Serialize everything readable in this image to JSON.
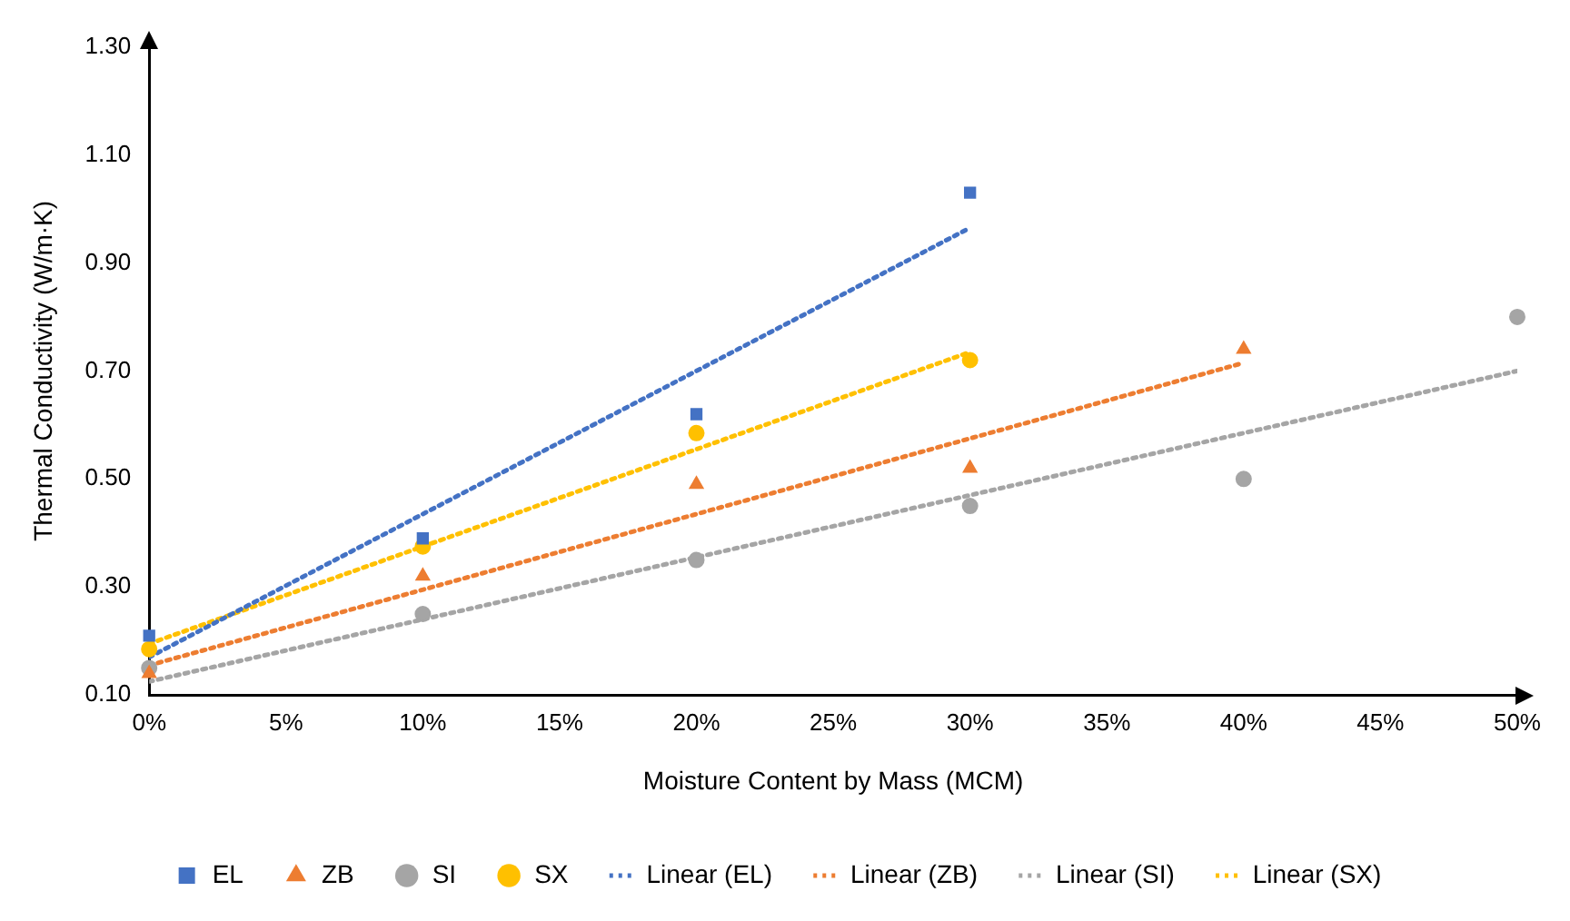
{
  "chart_data": {
    "type": "scatter",
    "xlabel": "Moisture Content by Mass (MCM)",
    "ylabel": "Thermal Conductivity (W/m·K)",
    "xlim": [
      0,
      50
    ],
    "xticks": [
      {
        "value": 0,
        "label": "0%"
      },
      {
        "value": 5,
        "label": "5%"
      },
      {
        "value": 10,
        "label": "10%"
      },
      {
        "value": 15,
        "label": "15%"
      },
      {
        "value": 20,
        "label": "20%"
      },
      {
        "value": 25,
        "label": "25%"
      },
      {
        "value": 30,
        "label": "30%"
      },
      {
        "value": 35,
        "label": "35%"
      },
      {
        "value": 40,
        "label": "40%"
      },
      {
        "value": 45,
        "label": "45%"
      },
      {
        "value": 50,
        "label": "50%"
      }
    ],
    "ylim": [
      0.1,
      1.3
    ],
    "yticks": [
      {
        "value": 0.1,
        "label": "0.10"
      },
      {
        "value": 0.3,
        "label": "0.30"
      },
      {
        "value": 0.5,
        "label": "0.50"
      },
      {
        "value": 0.7,
        "label": "0.70"
      },
      {
        "value": 0.9,
        "label": "0.90"
      },
      {
        "value": 1.1,
        "label": "1.10"
      },
      {
        "value": 1.3,
        "label": "1.30"
      }
    ],
    "grid": false,
    "legend": "bottom",
    "series": [
      {
        "name": "EL",
        "type": "scatter",
        "marker": "square",
        "color": "#4472c4",
        "x": [
          0,
          10,
          20,
          30
        ],
        "values": [
          0.21,
          0.39,
          0.62,
          1.03
        ]
      },
      {
        "name": "ZB",
        "type": "scatter",
        "marker": "triangle",
        "color": "#ed7d31",
        "x": [
          0,
          10,
          20,
          30,
          40
        ],
        "values": [
          0.14,
          0.32,
          0.49,
          0.52,
          0.74
        ]
      },
      {
        "name": "SI",
        "type": "scatter",
        "marker": "circle",
        "color": "#a5a5a5",
        "x": [
          0,
          10,
          20,
          30,
          40,
          50
        ],
        "values": [
          0.15,
          0.25,
          0.35,
          0.45,
          0.5,
          0.8
        ]
      },
      {
        "name": "SX",
        "type": "scatter",
        "marker": "circle",
        "color": "#ffc000",
        "x": [
          0,
          10,
          20,
          30
        ],
        "values": [
          0.185,
          0.375,
          0.585,
          0.72
        ]
      },
      {
        "name": "Linear (EL)",
        "type": "line",
        "marker": "none",
        "line_style": "dotted",
        "color": "#4472c4",
        "x": [
          0,
          30
        ],
        "values": [
          0.17,
          0.965
        ]
      },
      {
        "name": "Linear (ZB)",
        "type": "line",
        "marker": "none",
        "line_style": "dotted",
        "color": "#ed7d31",
        "x": [
          0,
          40
        ],
        "values": [
          0.155,
          0.715
        ]
      },
      {
        "name": "Linear (SI)",
        "type": "line",
        "marker": "none",
        "line_style": "dotted",
        "color": "#a5a5a5",
        "x": [
          0,
          50
        ],
        "values": [
          0.125,
          0.7
        ]
      },
      {
        "name": "Linear (SX)",
        "type": "line",
        "marker": "none",
        "line_style": "dotted",
        "color": "#ffc000",
        "x": [
          0,
          30
        ],
        "values": [
          0.195,
          0.735
        ]
      }
    ]
  }
}
